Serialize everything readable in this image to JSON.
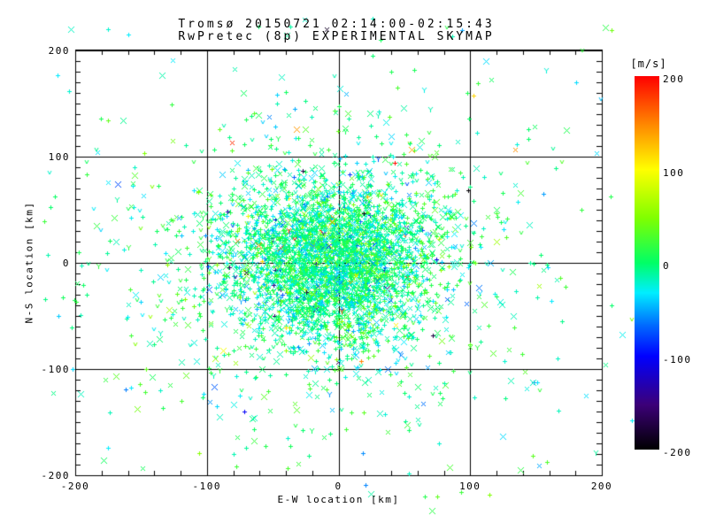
{
  "chart_data": {
    "type": "scatter",
    "title": "Tromsø 20150721 02:14:00-02:15:43",
    "subtitle": "RwPretec (8p) EXPERIMENTAL SKYMAP",
    "xlabel": "E-W location [km]",
    "ylabel": "N-S location [km]",
    "xlim": [
      -200,
      200
    ],
    "ylim": [
      -200,
      200
    ],
    "x_major_ticks": [
      -200,
      -100,
      0,
      100,
      200
    ],
    "y_major_ticks": [
      -200,
      -100,
      0,
      100,
      200
    ],
    "x_minor_step": 20,
    "y_minor_step": 10,
    "grid_lines": [
      -100,
      0,
      100
    ],
    "axis_color": "#000000",
    "background": "#ffffff",
    "legend": "none",
    "colorbar": {
      "label": "[m/s]",
      "min": -200,
      "max": 200,
      "ticks": [
        200,
        100,
        0,
        -100,
        -200
      ],
      "stops": [
        [
          0.0,
          "#000000"
        ],
        [
          0.12,
          "#3c0078"
        ],
        [
          0.25,
          "#0000ff"
        ],
        [
          0.33,
          "#0066ff"
        ],
        [
          0.42,
          "#00eeff"
        ],
        [
          0.5,
          "#00ff66"
        ],
        [
          0.62,
          "#80ff00"
        ],
        [
          0.75,
          "#ffff00"
        ],
        [
          0.87,
          "#ff8800"
        ],
        [
          1.0,
          "#ff0000"
        ]
      ]
    },
    "points_spec": {
      "description": "Dense radar-echo scatter centered near (0,0); most Doppler velocities near 0 m/s (spring green), minority cyan (negative), rare red/orange/yellow/blue/black outliers",
      "seed": 1337,
      "n_points_estimate": 4400,
      "clusters": [
        {
          "count": 3400,
          "cx": -5,
          "cy": 2,
          "sx": 40,
          "sy": 38
        },
        {
          "count": 900,
          "cx": -12,
          "cy": -5,
          "sx": 92,
          "sy": 82
        },
        {
          "count": 100,
          "uniform": true,
          "range": [
            -225,
            225
          ]
        }
      ],
      "velocity": {
        "mean": -5,
        "sd": 25,
        "outlier_fraction": 0.025,
        "outlier_range": [
          -200,
          200
        ]
      },
      "symbols": [
        {
          "type": "plus",
          "weight": 0.5
        },
        {
          "type": "x",
          "weight": 0.33
        },
        {
          "type": "tri",
          "weight": 0.12
        },
        {
          "type": "y",
          "weight": 0.05
        }
      ]
    }
  }
}
